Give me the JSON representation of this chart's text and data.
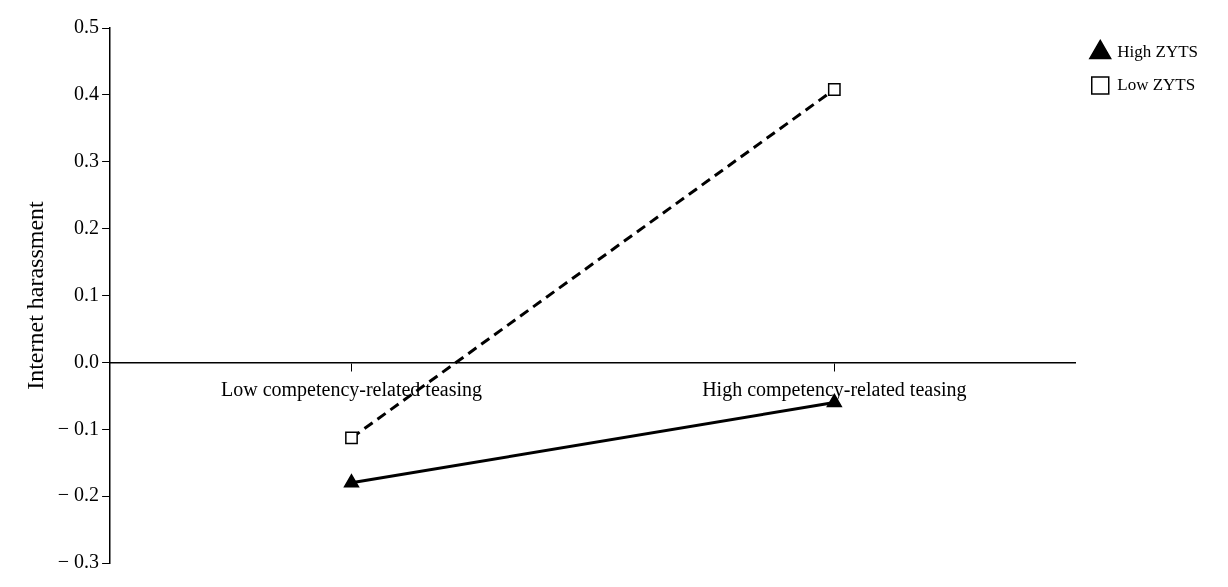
{
  "chart_data": {
    "type": "line",
    "ylabel": "Internet harassment",
    "categories": [
      "Low competency-related teasing",
      "High competency-related teasing"
    ],
    "series": [
      {
        "name": "High ZYTS",
        "color": "#000000",
        "values": [
          -0.18,
          -0.06
        ],
        "marker": "triangle",
        "line_style": "solid"
      },
      {
        "name": "Low ZYTS",
        "color": "#000000",
        "values": [
          -0.113,
          0.408
        ],
        "marker": "square",
        "line_style": "dashed"
      }
    ],
    "ylim": [
      -0.3,
      0.5
    ],
    "yticks": [
      {
        "value": -0.3,
        "label": "− 0.3"
      },
      {
        "value": -0.2,
        "label": "− 0.2"
      },
      {
        "value": -0.1,
        "label": "− 0.1"
      },
      {
        "value": 0,
        "label": "0.0"
      },
      {
        "value": 0.1,
        "label": "0.1"
      },
      {
        "value": 0.2,
        "label": "0.2"
      },
      {
        "value": 0.3,
        "label": "0.3"
      },
      {
        "value": 0.4,
        "label": "0.4"
      },
      {
        "value": 0.5,
        "label": "0.5"
      }
    ],
    "grid": false,
    "legend": "top right"
  }
}
